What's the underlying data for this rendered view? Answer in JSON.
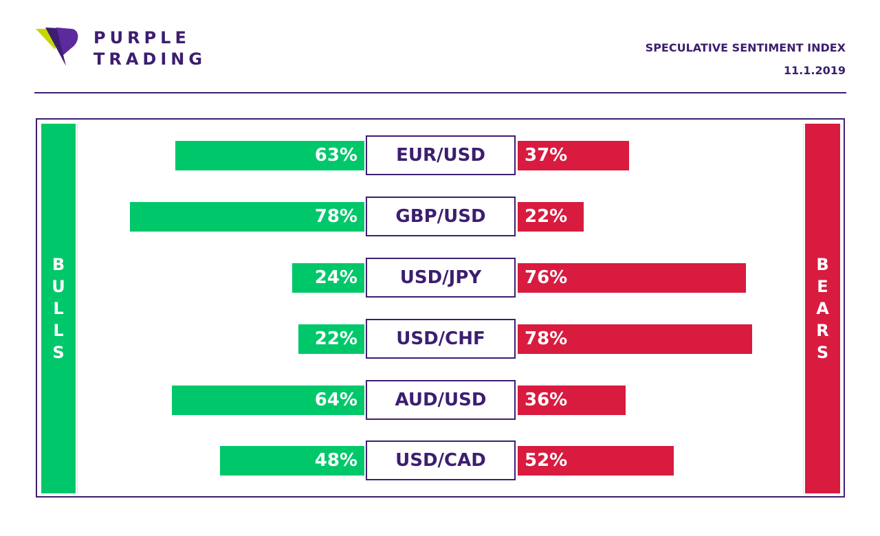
{
  "brand": {
    "line1": "PURPLE",
    "line2": "TRADING"
  },
  "header": {
    "title": "SPECULATIVE SENTIMENT INDEX",
    "date": "11.1.2019"
  },
  "colors": {
    "bull": "#00c86a",
    "bear": "#d81b3f",
    "accent": "#3c1e70",
    "logo_lime": "#c8d600"
  },
  "chart_data": {
    "type": "bar",
    "left_label": "BULLS",
    "right_label": "BEARS",
    "categories": [
      "EUR/USD",
      "GBP/USD",
      "USD/JPY",
      "USD/CHF",
      "AUD/USD",
      "USD/CAD"
    ],
    "series": [
      {
        "name": "BULLS",
        "values": [
          63,
          78,
          24,
          22,
          64,
          48
        ]
      },
      {
        "name": "BEARS",
        "values": [
          37,
          22,
          76,
          78,
          36,
          52
        ]
      }
    ],
    "labels": {
      "bulls": [
        "63%",
        "78%",
        "24%",
        "22%",
        "64%",
        "48%"
      ],
      "bears": [
        "37%",
        "22%",
        "76%",
        "78%",
        "36%",
        "52%"
      ]
    }
  }
}
